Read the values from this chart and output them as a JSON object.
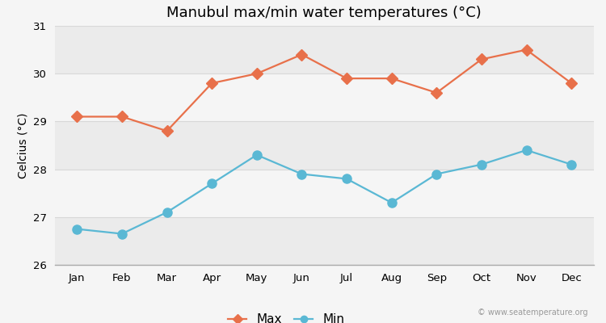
{
  "title": "Manubul max/min water temperatures (°C)",
  "ylabel": "Celcius (°C)",
  "months": [
    "Jan",
    "Feb",
    "Mar",
    "Apr",
    "May",
    "Jun",
    "Jul",
    "Aug",
    "Sep",
    "Oct",
    "Nov",
    "Dec"
  ],
  "max_values": [
    29.1,
    29.1,
    28.8,
    29.8,
    30.0,
    30.4,
    29.9,
    29.9,
    29.6,
    30.3,
    30.5,
    29.8
  ],
  "min_values": [
    26.75,
    26.65,
    27.1,
    27.7,
    28.3,
    27.9,
    27.8,
    27.3,
    27.9,
    28.1,
    28.4,
    28.1
  ],
  "max_color": "#e8704a",
  "min_color": "#5ab8d4",
  "bg_color": "#f5f5f5",
  "band_colors": [
    "#ebebeb",
    "#f5f5f5"
  ],
  "grid_color": "#d8d8d8",
  "ylim": [
    26,
    31
  ],
  "yticks": [
    26,
    27,
    28,
    29,
    30,
    31
  ],
  "marker_size": 7,
  "line_width": 1.6,
  "title_fontsize": 13,
  "label_fontsize": 10,
  "tick_fontsize": 9.5,
  "watermark": "© www.seatemperature.org"
}
